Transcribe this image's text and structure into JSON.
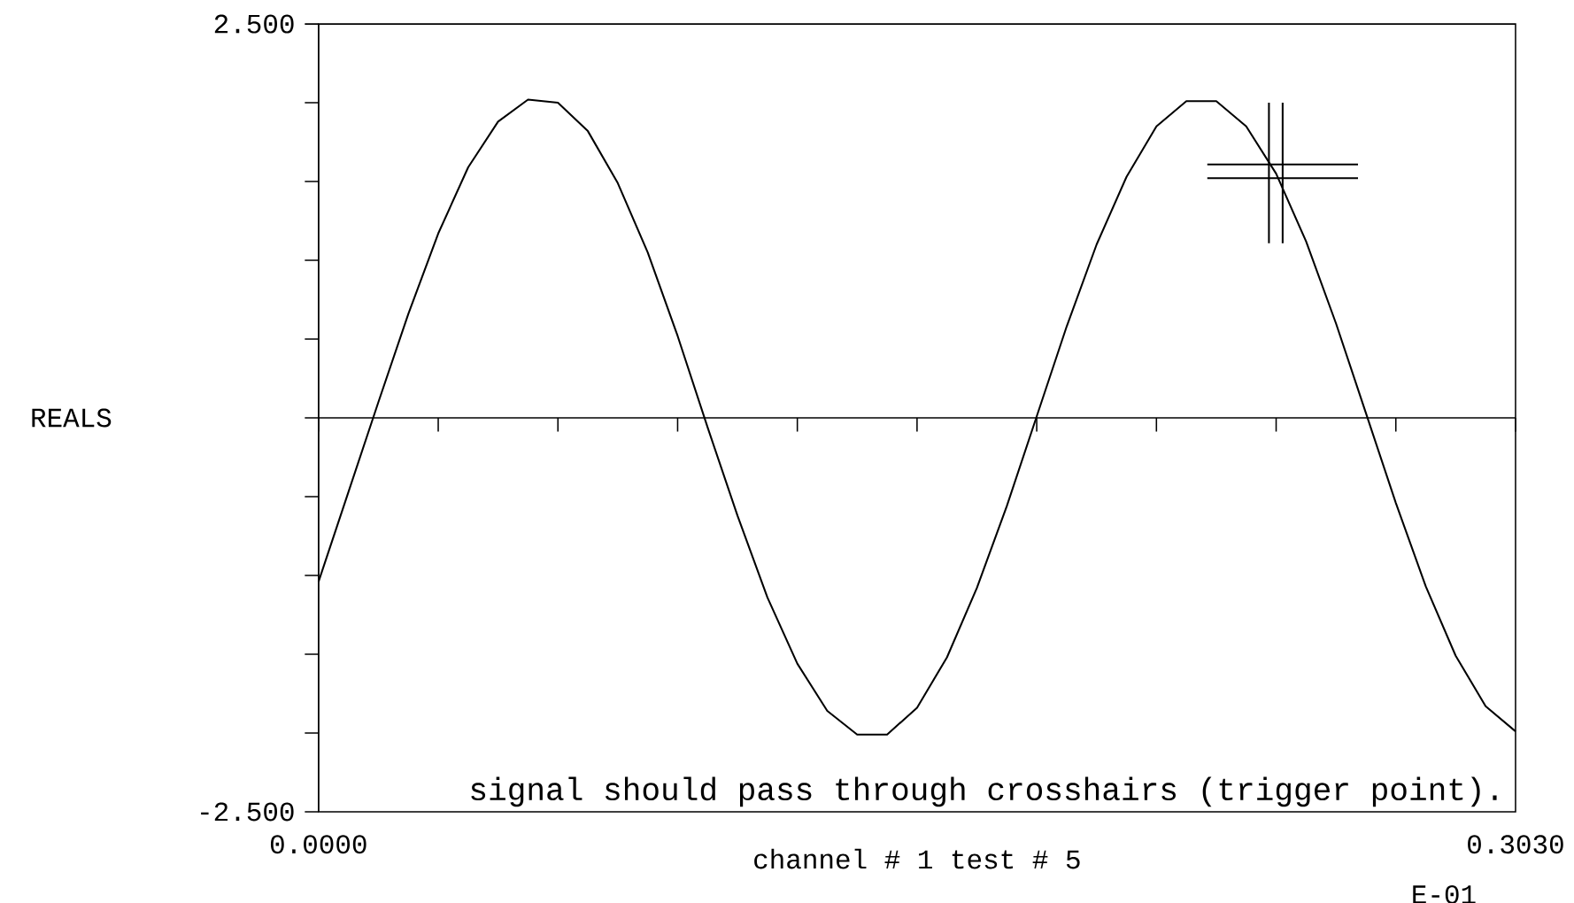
{
  "chart_data": {
    "type": "line",
    "xlabel": "channel # 1    test # 5",
    "ylabel": "REALS",
    "annotations": [
      "signal should pass through crosshairs (trigger point).",
      "E-01"
    ],
    "xlim": [
      0,
      0.303
    ],
    "ylim": [
      -2.5,
      2.5
    ],
    "xticks": [
      {
        "value": 0,
        "label": "0.0000"
      },
      {
        "value": 0.0303,
        "label": null
      },
      {
        "value": 0.0606,
        "label": null
      },
      {
        "value": 0.0909,
        "label": null
      },
      {
        "value": 0.1212,
        "label": null
      },
      {
        "value": 0.1515,
        "label": null
      },
      {
        "value": 0.1818,
        "label": null
      },
      {
        "value": 0.2121,
        "label": null
      },
      {
        "value": 0.2424,
        "label": null
      },
      {
        "value": 0.2727,
        "label": null
      },
      {
        "value": 0.303,
        "label": "0.3030"
      }
    ],
    "yticks": [
      {
        "value": -2.5,
        "label": "-2.500"
      },
      {
        "value": -2.0,
        "label": null
      },
      {
        "value": -1.5,
        "label": null
      },
      {
        "value": -1.0,
        "label": null
      },
      {
        "value": -0.5,
        "label": null
      },
      {
        "value": 0,
        "label": null
      },
      {
        "value": 0.5,
        "label": null
      },
      {
        "value": 1.0,
        "label": null
      },
      {
        "value": 1.5,
        "label": null
      },
      {
        "value": 2.0,
        "label": null
      },
      {
        "value": 2.5,
        "label": "2.500"
      }
    ],
    "marker": "none",
    "x": [
      0,
      0.00758,
      0.01515,
      0.02273,
      0.0303,
      0.03788,
      0.04545,
      0.05303,
      0.0606,
      0.06818,
      0.07575,
      0.08333,
      0.0909,
      0.09848,
      0.10605,
      0.11363,
      0.1212,
      0.12878,
      0.13635,
      0.14393,
      0.1515,
      0.15908,
      0.16665,
      0.17423,
      0.1818,
      0.18938,
      0.19695,
      0.20453,
      0.2121,
      0.21968,
      0.22725,
      0.23483,
      0.2424,
      0.24998,
      0.25755,
      0.26513,
      0.2727,
      0.28028,
      0.28785,
      0.29543,
      0.303
    ],
    "series": [
      {
        "color": "#000000",
        "values": [
          -1.04,
          -0.47,
          0.1,
          0.66,
          1.17,
          1.59,
          1.88,
          2.02,
          2.0,
          1.82,
          1.49,
          1.05,
          0.52,
          -0.06,
          -0.62,
          -1.14,
          -1.56,
          -1.86,
          -2.01,
          -2.01,
          -1.84,
          -1.52,
          -1.08,
          -0.56,
          0.01,
          0.58,
          1.1,
          1.53,
          1.85,
          2.01,
          2.01,
          1.85,
          1.55,
          1.12,
          0.6,
          0.03,
          -0.54,
          -1.07,
          -1.51,
          -1.83,
          -1.99
        ]
      }
    ]
  }
}
